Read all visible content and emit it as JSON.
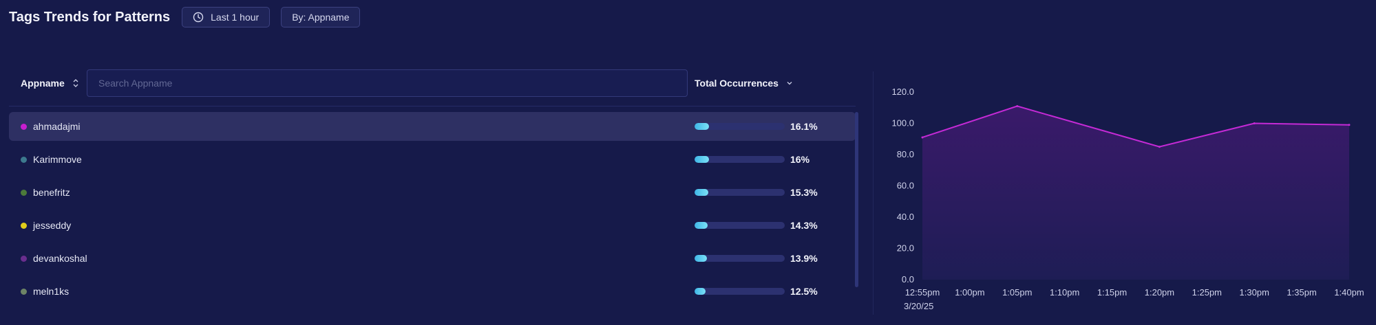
{
  "header": {
    "title": "Tags Trends for Patterns",
    "time_range": "Last 1 hour",
    "group_by": "By: Appname"
  },
  "table": {
    "col_appname": "Appname",
    "search_placeholder": "Search Appname",
    "col_total": "Total Occurrences",
    "rows": [
      {
        "name": "ahmadajmi",
        "pct_label": "16.1%",
        "pct": 16.1,
        "color": "#c81ecf"
      },
      {
        "name": "Karimmove",
        "pct_label": "16%",
        "pct": 16.0,
        "color": "#3d7a8e"
      },
      {
        "name": "benefritz",
        "pct_label": "15.3%",
        "pct": 15.3,
        "color": "#4c7a3a"
      },
      {
        "name": "jesseddy",
        "pct_label": "14.3%",
        "pct": 14.3,
        "color": "#e0cc1a"
      },
      {
        "name": "devankoshal",
        "pct_label": "13.9%",
        "pct": 13.9,
        "color": "#6a2e8e"
      },
      {
        "name": "meln1ks",
        "pct_label": "12.5%",
        "pct": 12.5,
        "color": "#6d8466"
      }
    ]
  },
  "chart_data": {
    "type": "area",
    "x": [
      "12:55pm",
      "1:00pm",
      "1:05pm",
      "1:10pm",
      "1:15pm",
      "1:20pm",
      "1:25pm",
      "1:30pm",
      "1:35pm",
      "1:40pm"
    ],
    "x_sublabel": "3/20/25",
    "series": [
      {
        "x": [
          "12:55pm",
          "1:05pm",
          "1:20pm",
          "1:30pm",
          "1:40pm"
        ],
        "values": [
          91,
          111,
          85,
          100,
          99
        ],
        "color": "#c52ad6"
      }
    ],
    "ylim": [
      0,
      120
    ],
    "yticks": [
      "0.0",
      "20.0",
      "40.0",
      "60.0",
      "80.0",
      "100.0",
      "120.0"
    ],
    "grid": false
  }
}
